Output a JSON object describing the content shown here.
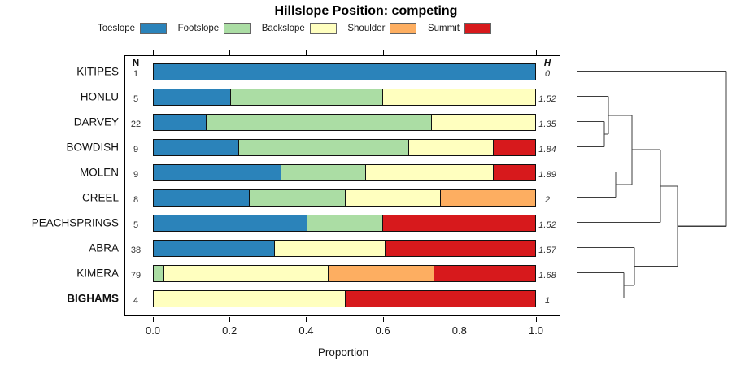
{
  "title": "Hillslope Position: competing",
  "chart_data": {
    "type": "bar",
    "variant": "horizontal-stacked-proportions-with-dendrogram",
    "title": "Hillslope Position: competing",
    "xlabel": "Proportion",
    "x_ticks": [
      "0.0",
      "0.2",
      "0.4",
      "0.6",
      "0.8",
      "1.0"
    ],
    "xlim": [
      0.0,
      1.0
    ],
    "grid": false,
    "legend_position": "top",
    "n_header": "N",
    "h_header": "H",
    "categories": [
      "Toeslope",
      "Footslope",
      "Backslope",
      "Shoulder",
      "Summit"
    ],
    "palette": {
      "Toeslope": "#2B83BA",
      "Footslope": "#ABDDA4",
      "Backslope": "#FFFFBF",
      "Shoulder": "#FDAE61",
      "Summit": "#D7191C"
    },
    "legend": [
      {
        "label": "Toeslope",
        "color": "#2B83BA"
      },
      {
        "label": "Footslope",
        "color": "#ABDDA4"
      },
      {
        "label": "Backslope",
        "color": "#FFFFBF"
      },
      {
        "label": "Shoulder",
        "color": "#FDAE61"
      },
      {
        "label": "Summit",
        "color": "#D7191C"
      }
    ],
    "rows": [
      {
        "name": "KITIPES",
        "bold": false,
        "n": "1",
        "h": "0",
        "segments": [
          [
            "Toeslope",
            1.0
          ]
        ]
      },
      {
        "name": "HONLU",
        "bold": false,
        "n": "5",
        "h": "1.52",
        "segments": [
          [
            "Toeslope",
            0.2
          ],
          [
            "Footslope",
            0.4
          ],
          [
            "Backslope",
            0.4
          ]
        ]
      },
      {
        "name": "DARVEY",
        "bold": false,
        "n": "22",
        "h": "1.35",
        "segments": [
          [
            "Toeslope",
            0.136
          ],
          [
            "Footslope",
            0.591
          ],
          [
            "Backslope",
            0.273
          ]
        ]
      },
      {
        "name": "BOWDISH",
        "bold": false,
        "n": "9",
        "h": "1.84",
        "segments": [
          [
            "Toeslope",
            0.222
          ],
          [
            "Footslope",
            0.445
          ],
          [
            "Backslope",
            0.222
          ],
          [
            "Summit",
            0.111
          ]
        ]
      },
      {
        "name": "MOLEN",
        "bold": false,
        "n": "9",
        "h": "1.89",
        "segments": [
          [
            "Toeslope",
            0.333
          ],
          [
            "Footslope",
            0.222
          ],
          [
            "Backslope",
            0.334
          ],
          [
            "Summit",
            0.111
          ]
        ]
      },
      {
        "name": "CREEL",
        "bold": false,
        "n": "8",
        "h": "2",
        "segments": [
          [
            "Toeslope",
            0.25
          ],
          [
            "Footslope",
            0.25
          ],
          [
            "Backslope",
            0.25
          ],
          [
            "Shoulder",
            0.25
          ]
        ]
      },
      {
        "name": "PEACHSPRINGS",
        "bold": false,
        "n": "5",
        "h": "1.52",
        "segments": [
          [
            "Toeslope",
            0.4
          ],
          [
            "Footslope",
            0.2
          ],
          [
            "Summit",
            0.4
          ]
        ]
      },
      {
        "name": "ABRA",
        "bold": false,
        "n": "38",
        "h": "1.57",
        "segments": [
          [
            "Toeslope",
            0.316
          ],
          [
            "Backslope",
            0.289
          ],
          [
            "Summit",
            0.395
          ]
        ]
      },
      {
        "name": "KIMERA",
        "bold": false,
        "n": "79",
        "h": "1.68",
        "segments": [
          [
            "Footslope",
            0.025
          ],
          [
            "Backslope",
            0.431
          ],
          [
            "Shoulder",
            0.278
          ],
          [
            "Summit",
            0.266
          ]
        ]
      },
      {
        "name": "BIGHAMS",
        "bold": true,
        "n": "4",
        "h": "1",
        "segments": [
          [
            "Backslope",
            0.5
          ],
          [
            "Summit",
            0.5
          ]
        ]
      }
    ],
    "dendrogram": {
      "orientation": "leaves-left-root-right",
      "leaf_order": [
        "KITIPES",
        "HONLU",
        "DARVEY",
        "BOWDISH",
        "MOLEN",
        "CREEL",
        "PEACHSPRINGS",
        "ABRA",
        "KIMERA",
        "BIGHAMS"
      ],
      "merges": [
        {
          "a": "L2",
          "b": "L3",
          "h": 0.185
        },
        {
          "a": "L1",
          "b": "M0",
          "h": 0.212
        },
        {
          "a": "L4",
          "b": "L5",
          "h": 0.261
        },
        {
          "a": "M1",
          "b": "M2",
          "h": 0.37
        },
        {
          "a": "M3",
          "b": "L6",
          "h": 0.56
        },
        {
          "a": "L8",
          "b": "L9",
          "h": 0.315
        },
        {
          "a": "L7",
          "b": "M5",
          "h": 0.386
        },
        {
          "a": "M4",
          "b": "M6",
          "h": 0.674
        },
        {
          "a": "L0",
          "b": "M7",
          "h": 1.0
        }
      ],
      "line_color": "#3d3d3d"
    }
  }
}
